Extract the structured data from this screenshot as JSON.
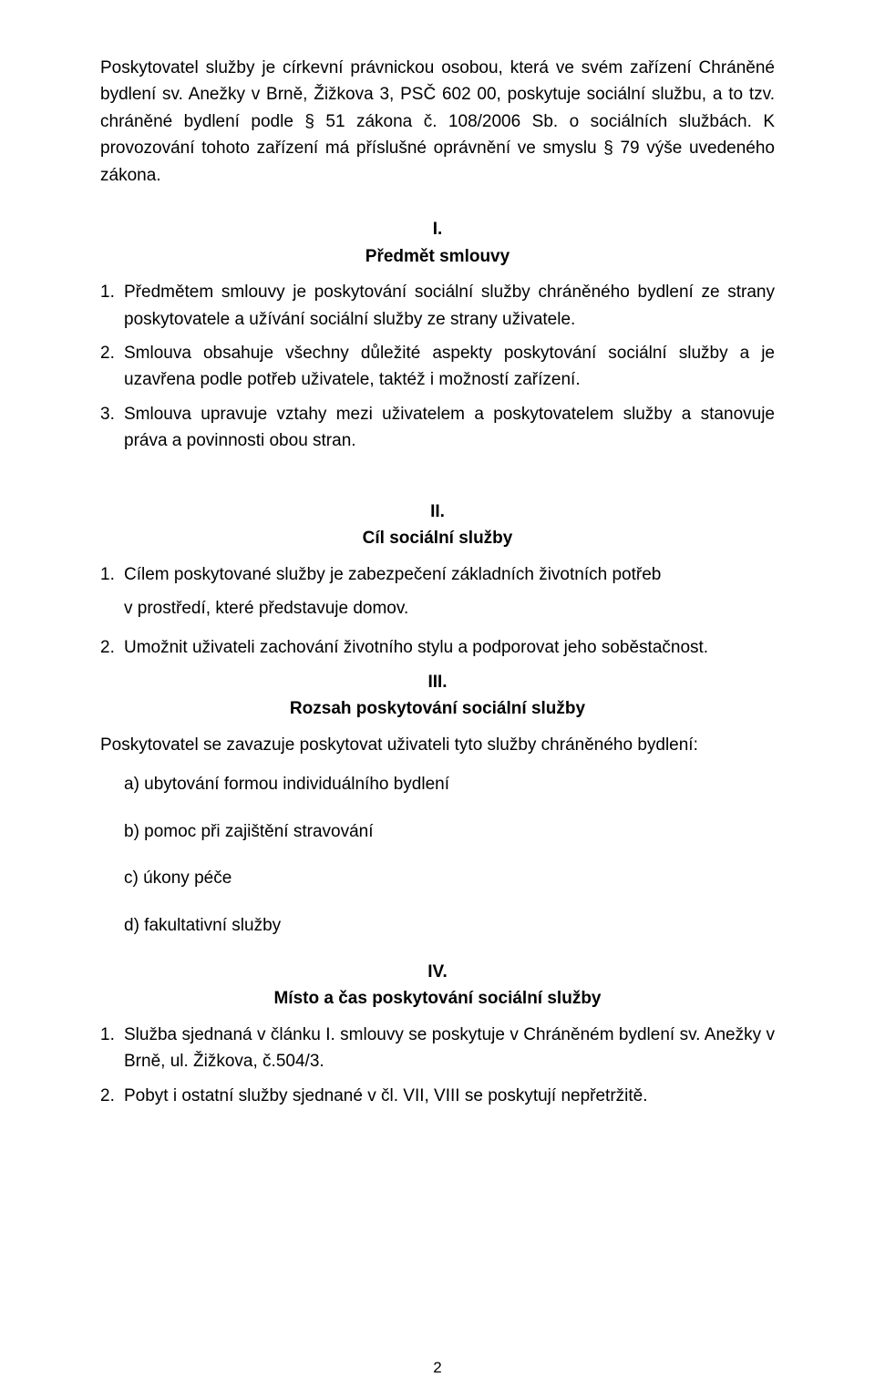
{
  "intro": "Poskytovatel služby je církevní právnickou osobou, která ve svém zařízení Chráněné bydlení sv. Anežky v Brně, Žižkova 3, PSČ 602 00, poskytuje sociální službu, a to tzv. chráněné bydlení podle § 51 zákona č. 108/2006 Sb. o sociálních službách. K provozování tohoto zařízení má příslušné oprávnění ve smyslu § 79 výše uvedeného zákona.",
  "s1": {
    "num": "I.",
    "title": "Předmět smlouvy",
    "items": {
      "n1": "1.",
      "t1": "Předmětem smlouvy je poskytování sociální služby chráněného bydlení ze strany poskytovatele a užívání sociální služby ze strany uživatele.",
      "n2": "2.",
      "t2": "Smlouva obsahuje všechny důležité aspekty poskytování sociální služby a je uzavřena podle potřeb uživatele, taktéž i možností zařízení.",
      "n3": "3.",
      "t3": "Smlouva upravuje vztahy mezi uživatelem a poskytovatelem služby a stanovuje práva a povinnosti obou stran."
    }
  },
  "s2": {
    "num": "II.",
    "title": "Cíl sociální služby",
    "items": {
      "n1": "1.",
      "t1": "Cílem poskytované služby je zabezpečení základních životních potřeb",
      "t1b": "v  prostředí, které představuje domov.",
      "n2": "2.",
      "t2": "Umožnit uživateli zachování životního stylu a podporovat jeho soběstačnost."
    }
  },
  "s3": {
    "num": "III.",
    "title": "Rozsah poskytování sociální služby",
    "lead": "Poskytovatel se zavazuje poskytovat uživateli tyto služby chráněného bydlení:",
    "a": "a) ubytování formou individuálního bydlení",
    "b": "b) pomoc při zajištění stravování",
    "c": "c) úkony péče",
    "d": "d) fakultativní služby"
  },
  "s4": {
    "num": "IV.",
    "title": "Místo a čas poskytování sociální služby",
    "items": {
      "n1": "1.",
      "t1": "Služba sjednaná v článku I. smlouvy se poskytuje v Chráněném bydlení sv. Anežky v Brně, ul. Žižkova, č.504/3.",
      "n2": "2.",
      "t2": "Pobyt i ostatní služby sjednané v čl. VII, VIII se poskytují nepřetržitě."
    }
  },
  "pageNumber": "2"
}
